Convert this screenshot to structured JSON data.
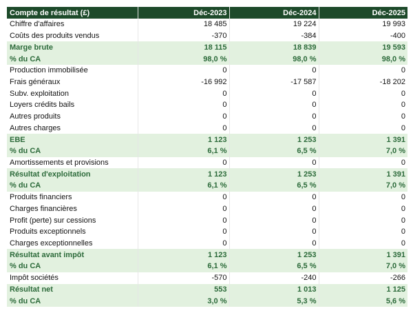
{
  "table": {
    "header": [
      "Compte de résultat (£)",
      "Déc-2023",
      "Déc-2024",
      "Déc-2025"
    ],
    "rows": [
      {
        "cells": [
          "Chiffre d'affaires",
          "18 485",
          "19 224",
          "19 993"
        ],
        "highlight": false
      },
      {
        "cells": [
          "Coûts des produits vendus",
          "-370",
          "-384",
          "-400"
        ],
        "highlight": false
      },
      {
        "cells": [
          "Marge brute",
          "18 115",
          "18 839",
          "19 593"
        ],
        "highlight": true
      },
      {
        "cells": [
          "% du CA",
          "98,0 %",
          "98,0 %",
          "98,0 %"
        ],
        "highlight": true
      },
      {
        "cells": [
          "Production immobilisée",
          "0",
          "0",
          "0"
        ],
        "highlight": false
      },
      {
        "cells": [
          "Frais généraux",
          "-16 992",
          "-17 587",
          "-18 202"
        ],
        "highlight": false
      },
      {
        "cells": [
          "Subv. exploitation",
          "0",
          "0",
          "0"
        ],
        "highlight": false
      },
      {
        "cells": [
          "Loyers crédits bails",
          "0",
          "0",
          "0"
        ],
        "highlight": false
      },
      {
        "cells": [
          "Autres produits",
          "0",
          "0",
          "0"
        ],
        "highlight": false
      },
      {
        "cells": [
          "Autres charges",
          "0",
          "0",
          "0"
        ],
        "highlight": false
      },
      {
        "cells": [
          "EBE",
          "1 123",
          "1 253",
          "1 391"
        ],
        "highlight": true
      },
      {
        "cells": [
          "% du CA",
          "6,1 %",
          "6,5 %",
          "7,0 %"
        ],
        "highlight": true
      },
      {
        "cells": [
          "Amortissements et provisions",
          "0",
          "0",
          "0"
        ],
        "highlight": false
      },
      {
        "cells": [
          "Résultat d'exploitation",
          "1 123",
          "1 253",
          "1 391"
        ],
        "highlight": true
      },
      {
        "cells": [
          "% du CA",
          "6,1 %",
          "6,5 %",
          "7,0 %"
        ],
        "highlight": true
      },
      {
        "cells": [
          "Produits financiers",
          "0",
          "0",
          "0"
        ],
        "highlight": false
      },
      {
        "cells": [
          "Charges financières",
          "0",
          "0",
          "0"
        ],
        "highlight": false
      },
      {
        "cells": [
          "Profit (perte) sur cessions",
          "0",
          "0",
          "0"
        ],
        "highlight": false
      },
      {
        "cells": [
          "Produits exceptionnels",
          "0",
          "0",
          "0"
        ],
        "highlight": false
      },
      {
        "cells": [
          "Charges exceptionnelles",
          "0",
          "0",
          "0"
        ],
        "highlight": false
      },
      {
        "cells": [
          "Résultat avant impôt",
          "1 123",
          "1 253",
          "1 391"
        ],
        "highlight": true
      },
      {
        "cells": [
          "% du CA",
          "6,1 %",
          "6,5 %",
          "7,0 %"
        ],
        "highlight": true
      },
      {
        "cells": [
          "Impôt sociétés",
          "-570",
          "-240",
          "-266"
        ],
        "highlight": false
      },
      {
        "cells": [
          "Résultat net",
          "553",
          "1 013",
          "1 125"
        ],
        "highlight": true
      },
      {
        "cells": [
          "% du CA",
          "3,0 %",
          "5,3 %",
          "5,6 %"
        ],
        "highlight": true
      }
    ]
  }
}
